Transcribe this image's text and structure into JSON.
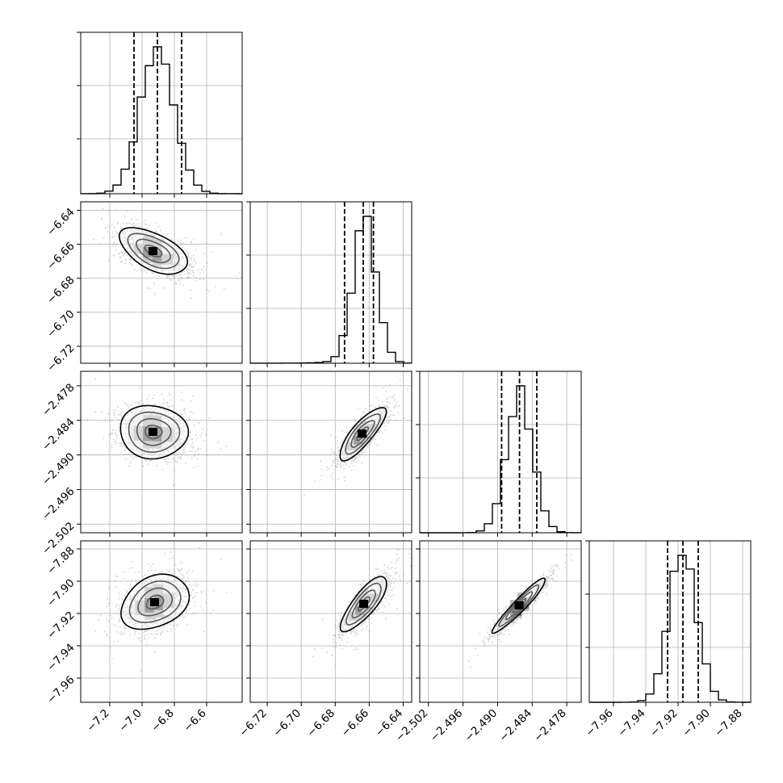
{
  "chart_data": {
    "type": "corner",
    "title": "",
    "params": [
      {
        "range": [
          -7.38,
          -6.38
        ],
        "ticks": [
          "−7.2",
          "−7.0",
          "−6.8",
          "−6.6"
        ],
        "tick_values": [
          -7.2,
          -7.0,
          -6.8,
          -6.6
        ],
        "quantiles": [
          -7.05,
          -6.905,
          -6.755
        ],
        "hist_mean": -6.905,
        "hist_sd": 0.105
      },
      {
        "range": [
          -6.73,
          -6.635
        ],
        "ticks": [
          "−6.72",
          "−6.70",
          "−6.68",
          "−6.66",
          "−6.64"
        ],
        "tick_values": [
          -6.72,
          -6.7,
          -6.68,
          -6.66,
          -6.64
        ],
        "quantiles": [
          -6.6745,
          -6.6635,
          -6.6575
        ],
        "hist_mean": -6.6625,
        "hist_sd": 0.0068
      },
      {
        "range": [
          -2.5035,
          -2.4755
        ],
        "ticks": [
          "−2.502",
          "−2.496",
          "−2.490",
          "−2.484",
          "−2.478"
        ],
        "tick_values": [
          -2.502,
          -2.496,
          -2.49,
          -2.484,
          -2.478
        ],
        "quantiles": [
          -2.4893,
          -2.4862,
          -2.4832
        ],
        "hist_mean": -2.4862,
        "hist_sd": 0.0023
      },
      {
        "range": [
          -7.975,
          -7.875
        ],
        "ticks": [
          "−7.96",
          "−7.94",
          "−7.92",
          "−7.90",
          "−7.88"
        ],
        "tick_values": [
          -7.96,
          -7.94,
          -7.92,
          -7.9,
          -7.88
        ],
        "quantiles": [
          -7.9265,
          -7.917,
          -7.9075
        ],
        "hist_mean": -7.917,
        "hist_sd": 0.0085
      }
    ],
    "pairs": [
      {
        "x": 0,
        "y": 1,
        "center": [
          -6.93,
          -6.664
        ],
        "rho": -0.55
      },
      {
        "x": 0,
        "y": 2,
        "center": [
          -6.93,
          -2.486
        ],
        "rho": -0.05
      },
      {
        "x": 1,
        "y": 2,
        "center": [
          -6.664,
          -2.4863
        ],
        "rho": 0.82
      },
      {
        "x": 0,
        "y": 3,
        "center": [
          -6.92,
          -7.913
        ],
        "rho": 0.3
      },
      {
        "x": 1,
        "y": 3,
        "center": [
          -6.663,
          -7.914
        ],
        "rho": 0.8
      },
      {
        "x": 2,
        "y": 3,
        "center": [
          -2.4862,
          -7.915
        ],
        "rho": 0.95
      }
    ],
    "grid": true,
    "quantile_line_style": "dashed"
  }
}
